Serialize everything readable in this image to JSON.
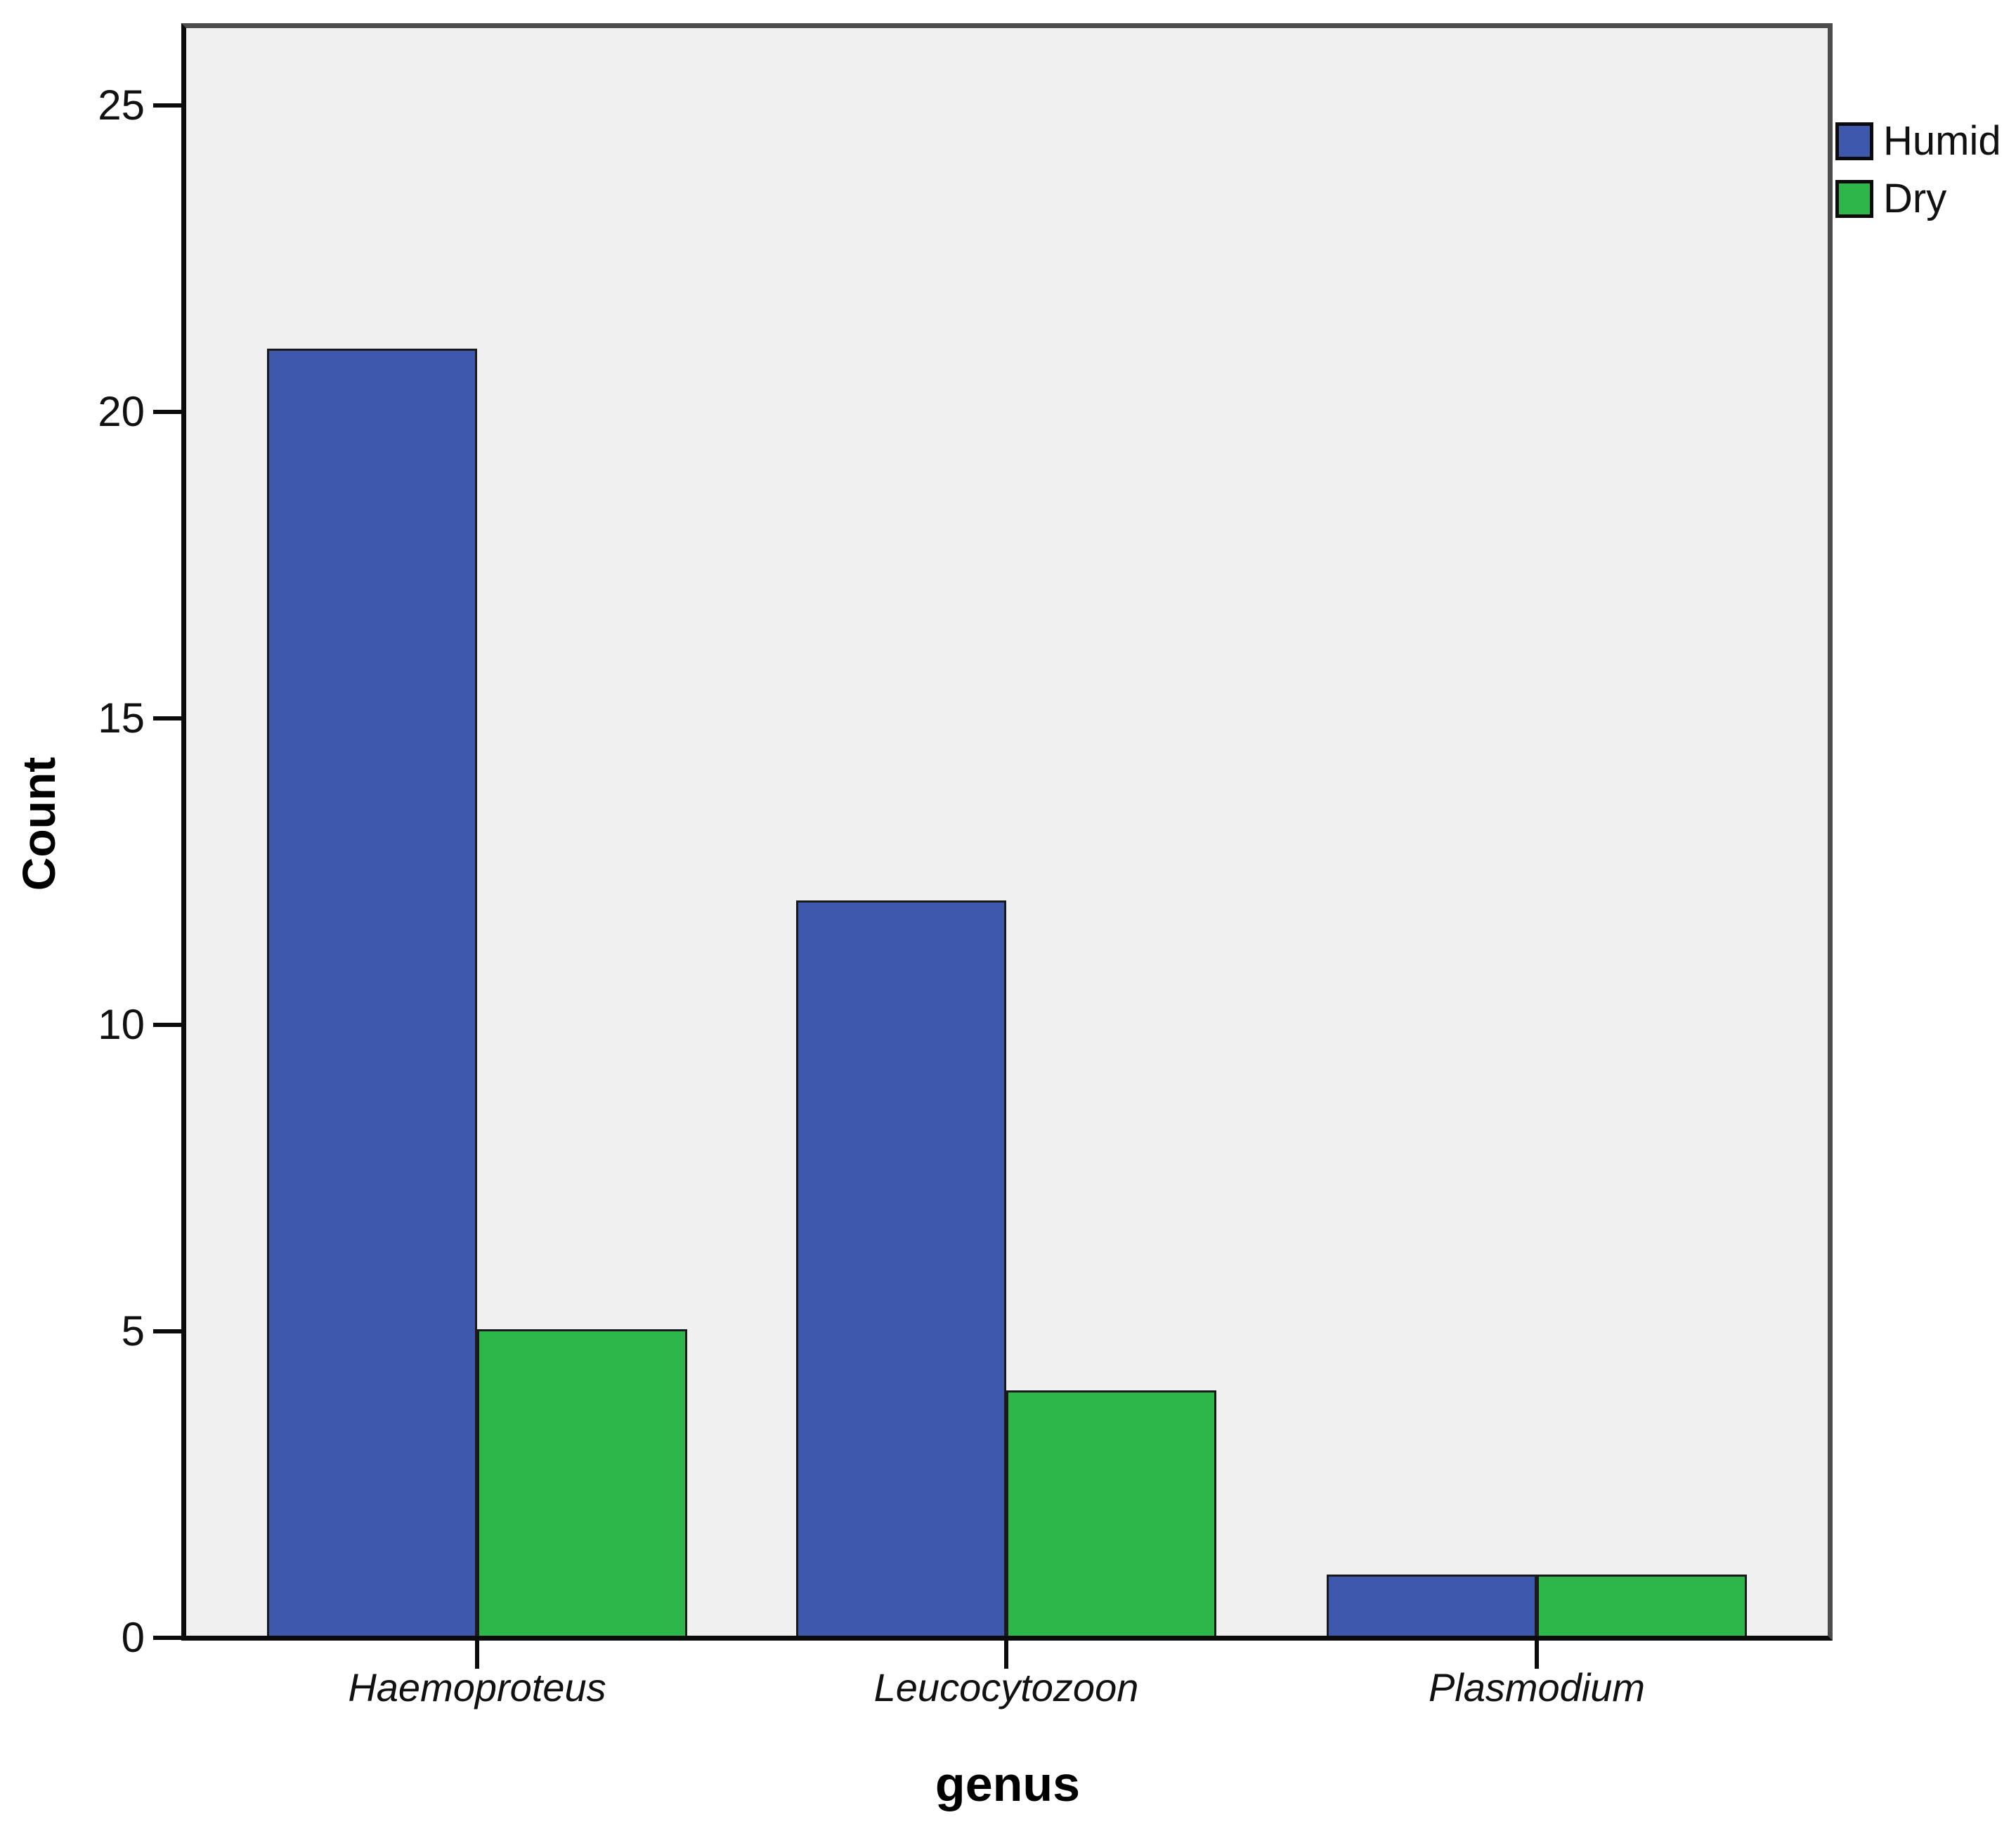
{
  "chart_data": {
    "type": "bar",
    "title": "",
    "categories": [
      "Haemoproteus",
      "Leucocytozoon",
      "Plasmodium"
    ],
    "series": [
      {
        "name": "Humid",
        "color": "#3D58AC",
        "values": [
          21,
          12,
          1
        ]
      },
      {
        "name": "Dry",
        "color": "#2DB649",
        "values": [
          5,
          4,
          1
        ]
      }
    ],
    "xlabel": "genus",
    "ylabel": "Count",
    "y_ticks": [
      0,
      5,
      10,
      15,
      20,
      25
    ],
    "ylim": [
      0,
      26.2
    ],
    "grid": false,
    "legend_position": "top-right-outside",
    "colors": {
      "plot_background": "#F0F0F0",
      "page_background": "#FFFFFF",
      "bar_border": "#1A1A1A",
      "axis_line": "#0B0B0B",
      "frame_line": "#4D4D4D",
      "text": "#111111"
    }
  }
}
